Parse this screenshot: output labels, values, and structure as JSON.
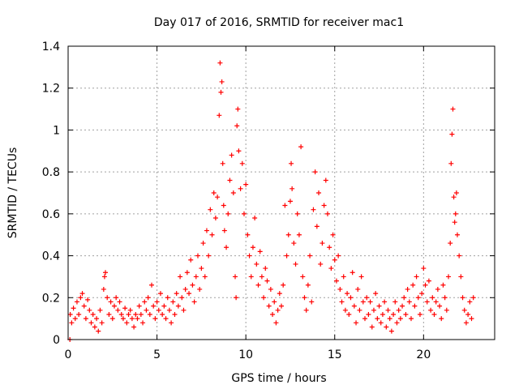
{
  "chart_data": {
    "type": "scatter",
    "title": "Day 017 of 2016, SRMTID for receiver mac1",
    "xlabel": "GPS time / hours",
    "ylabel": "SRMTID / TECUs",
    "xlim": [
      0,
      24
    ],
    "ylim": [
      0,
      1.4
    ],
    "x_ticks": [
      0,
      5,
      10,
      15,
      20
    ],
    "x_tick_labels": [
      "0",
      "5",
      "10",
      "15",
      "20"
    ],
    "y_ticks": [
      0,
      0.2,
      0.4,
      0.6,
      0.8,
      1.0,
      1.2,
      1.4
    ],
    "y_tick_labels": [
      "0",
      "0.2",
      "0.4",
      "0.6",
      "0.8",
      "1",
      "1.2",
      "1.4"
    ],
    "grid": true,
    "marker": "plus",
    "color": "#ff0000",
    "series": [
      {
        "name": "SRMTID",
        "points": [
          [
            0.1,
            0.0
          ],
          [
            0.12,
            0.12
          ],
          [
            0.2,
            0.08
          ],
          [
            0.3,
            0.15
          ],
          [
            0.4,
            0.1
          ],
          [
            0.5,
            0.18
          ],
          [
            0.6,
            0.12
          ],
          [
            0.7,
            0.2
          ],
          [
            0.8,
            0.22
          ],
          [
            0.9,
            0.16
          ],
          [
            1.0,
            0.1
          ],
          [
            1.1,
            0.19
          ],
          [
            1.2,
            0.14
          ],
          [
            1.3,
            0.08
          ],
          [
            1.4,
            0.12
          ],
          [
            1.5,
            0.06
          ],
          [
            1.6,
            0.1
          ],
          [
            1.7,
            0.04
          ],
          [
            1.8,
            0.14
          ],
          [
            1.9,
            0.08
          ],
          [
            2.0,
            0.24
          ],
          [
            2.05,
            0.3
          ],
          [
            2.1,
            0.32
          ],
          [
            2.2,
            0.2
          ],
          [
            2.3,
            0.12
          ],
          [
            2.4,
            0.18
          ],
          [
            2.5,
            0.1
          ],
          [
            2.6,
            0.16
          ],
          [
            2.7,
            0.2
          ],
          [
            2.8,
            0.14
          ],
          [
            2.9,
            0.18
          ],
          [
            3.0,
            0.12
          ],
          [
            3.1,
            0.1
          ],
          [
            3.2,
            0.15
          ],
          [
            3.3,
            0.08
          ],
          [
            3.4,
            0.12
          ],
          [
            3.5,
            0.14
          ],
          [
            3.6,
            0.1
          ],
          [
            3.7,
            0.06
          ],
          [
            3.8,
            0.12
          ],
          [
            3.9,
            0.1
          ],
          [
            4.0,
            0.16
          ],
          [
            4.1,
            0.12
          ],
          [
            4.2,
            0.08
          ],
          [
            4.3,
            0.18
          ],
          [
            4.4,
            0.14
          ],
          [
            4.5,
            0.2
          ],
          [
            4.6,
            0.12
          ],
          [
            4.7,
            0.26
          ],
          [
            4.8,
            0.16
          ],
          [
            4.9,
            0.1
          ],
          [
            5.0,
            0.18
          ],
          [
            5.1,
            0.14
          ],
          [
            5.2,
            0.22
          ],
          [
            5.3,
            0.12
          ],
          [
            5.4,
            0.16
          ],
          [
            5.5,
            0.1
          ],
          [
            5.6,
            0.2
          ],
          [
            5.7,
            0.14
          ],
          [
            5.8,
            0.08
          ],
          [
            5.9,
            0.18
          ],
          [
            6.0,
            0.12
          ],
          [
            6.1,
            0.22
          ],
          [
            6.2,
            0.16
          ],
          [
            6.3,
            0.3
          ],
          [
            6.4,
            0.2
          ],
          [
            6.5,
            0.14
          ],
          [
            6.6,
            0.24
          ],
          [
            6.7,
            0.32
          ],
          [
            6.8,
            0.22
          ],
          [
            6.9,
            0.38
          ],
          [
            7.0,
            0.26
          ],
          [
            7.1,
            0.18
          ],
          [
            7.2,
            0.3
          ],
          [
            7.3,
            0.4
          ],
          [
            7.4,
            0.24
          ],
          [
            7.5,
            0.34
          ],
          [
            7.6,
            0.46
          ],
          [
            7.7,
            0.3
          ],
          [
            7.8,
            0.52
          ],
          [
            7.9,
            0.4
          ],
          [
            8.0,
            0.62
          ],
          [
            8.1,
            0.5
          ],
          [
            8.2,
            0.7
          ],
          [
            8.3,
            0.58
          ],
          [
            8.4,
            0.68
          ],
          [
            8.5,
            1.07
          ],
          [
            8.55,
            1.32
          ],
          [
            8.6,
            1.18
          ],
          [
            8.65,
            1.23
          ],
          [
            8.7,
            0.84
          ],
          [
            8.75,
            0.64
          ],
          [
            8.8,
            0.52
          ],
          [
            8.9,
            0.44
          ],
          [
            9.0,
            0.6
          ],
          [
            9.1,
            0.76
          ],
          [
            9.2,
            0.88
          ],
          [
            9.3,
            0.7
          ],
          [
            9.4,
            0.3
          ],
          [
            9.45,
            0.2
          ],
          [
            9.5,
            1.02
          ],
          [
            9.55,
            1.1
          ],
          [
            9.6,
            0.9
          ],
          [
            9.7,
            0.72
          ],
          [
            9.8,
            0.84
          ],
          [
            9.9,
            0.6
          ],
          [
            10.0,
            0.74
          ],
          [
            10.1,
            0.5
          ],
          [
            10.2,
            0.4
          ],
          [
            10.3,
            0.3
          ],
          [
            10.4,
            0.44
          ],
          [
            10.5,
            0.58
          ],
          [
            10.6,
            0.36
          ],
          [
            10.7,
            0.26
          ],
          [
            10.8,
            0.42
          ],
          [
            10.9,
            0.3
          ],
          [
            11.0,
            0.2
          ],
          [
            11.1,
            0.34
          ],
          [
            11.2,
            0.28
          ],
          [
            11.3,
            0.16
          ],
          [
            11.4,
            0.24
          ],
          [
            11.5,
            0.12
          ],
          [
            11.6,
            0.18
          ],
          [
            11.7,
            0.08
          ],
          [
            11.8,
            0.14
          ],
          [
            11.9,
            0.22
          ],
          [
            12.0,
            0.16
          ],
          [
            12.1,
            0.26
          ],
          [
            12.2,
            0.64
          ],
          [
            12.3,
            0.4
          ],
          [
            12.4,
            0.5
          ],
          [
            12.5,
            0.66
          ],
          [
            12.55,
            0.84
          ],
          [
            12.6,
            0.72
          ],
          [
            12.7,
            0.46
          ],
          [
            12.8,
            0.36
          ],
          [
            12.9,
            0.6
          ],
          [
            13.0,
            0.5
          ],
          [
            13.1,
            0.92
          ],
          [
            13.2,
            0.3
          ],
          [
            13.3,
            0.2
          ],
          [
            13.4,
            0.14
          ],
          [
            13.5,
            0.26
          ],
          [
            13.6,
            0.4
          ],
          [
            13.7,
            0.18
          ],
          [
            13.8,
            0.62
          ],
          [
            13.9,
            0.8
          ],
          [
            14.0,
            0.54
          ],
          [
            14.1,
            0.7
          ],
          [
            14.2,
            0.36
          ],
          [
            14.3,
            0.46
          ],
          [
            14.4,
            0.64
          ],
          [
            14.5,
            0.76
          ],
          [
            14.6,
            0.6
          ],
          [
            14.7,
            0.44
          ],
          [
            14.8,
            0.34
          ],
          [
            14.9,
            0.5
          ],
          [
            15.0,
            0.38
          ],
          [
            15.1,
            0.28
          ],
          [
            15.2,
            0.4
          ],
          [
            15.3,
            0.24
          ],
          [
            15.4,
            0.18
          ],
          [
            15.5,
            0.3
          ],
          [
            15.6,
            0.14
          ],
          [
            15.7,
            0.22
          ],
          [
            15.8,
            0.12
          ],
          [
            15.9,
            0.2
          ],
          [
            16.0,
            0.32
          ],
          [
            16.1,
            0.16
          ],
          [
            16.2,
            0.08
          ],
          [
            16.3,
            0.24
          ],
          [
            16.4,
            0.14
          ],
          [
            16.5,
            0.3
          ],
          [
            16.6,
            0.18
          ],
          [
            16.7,
            0.1
          ],
          [
            16.8,
            0.2
          ],
          [
            16.9,
            0.12
          ],
          [
            17.0,
            0.18
          ],
          [
            17.1,
            0.06
          ],
          [
            17.2,
            0.14
          ],
          [
            17.3,
            0.22
          ],
          [
            17.4,
            0.1
          ],
          [
            17.5,
            0.16
          ],
          [
            17.6,
            0.08
          ],
          [
            17.7,
            0.12
          ],
          [
            17.8,
            0.18
          ],
          [
            17.9,
            0.06
          ],
          [
            18.0,
            0.14
          ],
          [
            18.1,
            0.1
          ],
          [
            18.2,
            0.04
          ],
          [
            18.3,
            0.12
          ],
          [
            18.4,
            0.18
          ],
          [
            18.5,
            0.08
          ],
          [
            18.6,
            0.14
          ],
          [
            18.7,
            0.1
          ],
          [
            18.8,
            0.16
          ],
          [
            18.9,
            0.2
          ],
          [
            19.0,
            0.12
          ],
          [
            19.1,
            0.24
          ],
          [
            19.2,
            0.18
          ],
          [
            19.3,
            0.1
          ],
          [
            19.4,
            0.26
          ],
          [
            19.5,
            0.16
          ],
          [
            19.6,
            0.3
          ],
          [
            19.7,
            0.2
          ],
          [
            19.8,
            0.12
          ],
          [
            19.9,
            0.22
          ],
          [
            20.0,
            0.34
          ],
          [
            20.1,
            0.26
          ],
          [
            20.2,
            0.18
          ],
          [
            20.3,
            0.28
          ],
          [
            20.4,
            0.14
          ],
          [
            20.5,
            0.2
          ],
          [
            20.6,
            0.12
          ],
          [
            20.7,
            0.18
          ],
          [
            20.8,
            0.24
          ],
          [
            20.9,
            0.16
          ],
          [
            21.0,
            0.1
          ],
          [
            21.1,
            0.26
          ],
          [
            21.2,
            0.2
          ],
          [
            21.3,
            0.14
          ],
          [
            21.4,
            0.3
          ],
          [
            21.5,
            0.46
          ],
          [
            21.55,
            0.84
          ],
          [
            21.6,
            0.98
          ],
          [
            21.65,
            1.1
          ],
          [
            21.7,
            0.68
          ],
          [
            21.75,
            0.56
          ],
          [
            21.8,
            0.6
          ],
          [
            21.85,
            0.7
          ],
          [
            21.9,
            0.5
          ],
          [
            22.0,
            0.4
          ],
          [
            22.1,
            0.3
          ],
          [
            22.2,
            0.2
          ],
          [
            22.3,
            0.14
          ],
          [
            22.4,
            0.08
          ],
          [
            22.5,
            0.12
          ],
          [
            22.6,
            0.18
          ],
          [
            22.7,
            0.1
          ],
          [
            22.8,
            0.2
          ]
        ]
      }
    ]
  }
}
